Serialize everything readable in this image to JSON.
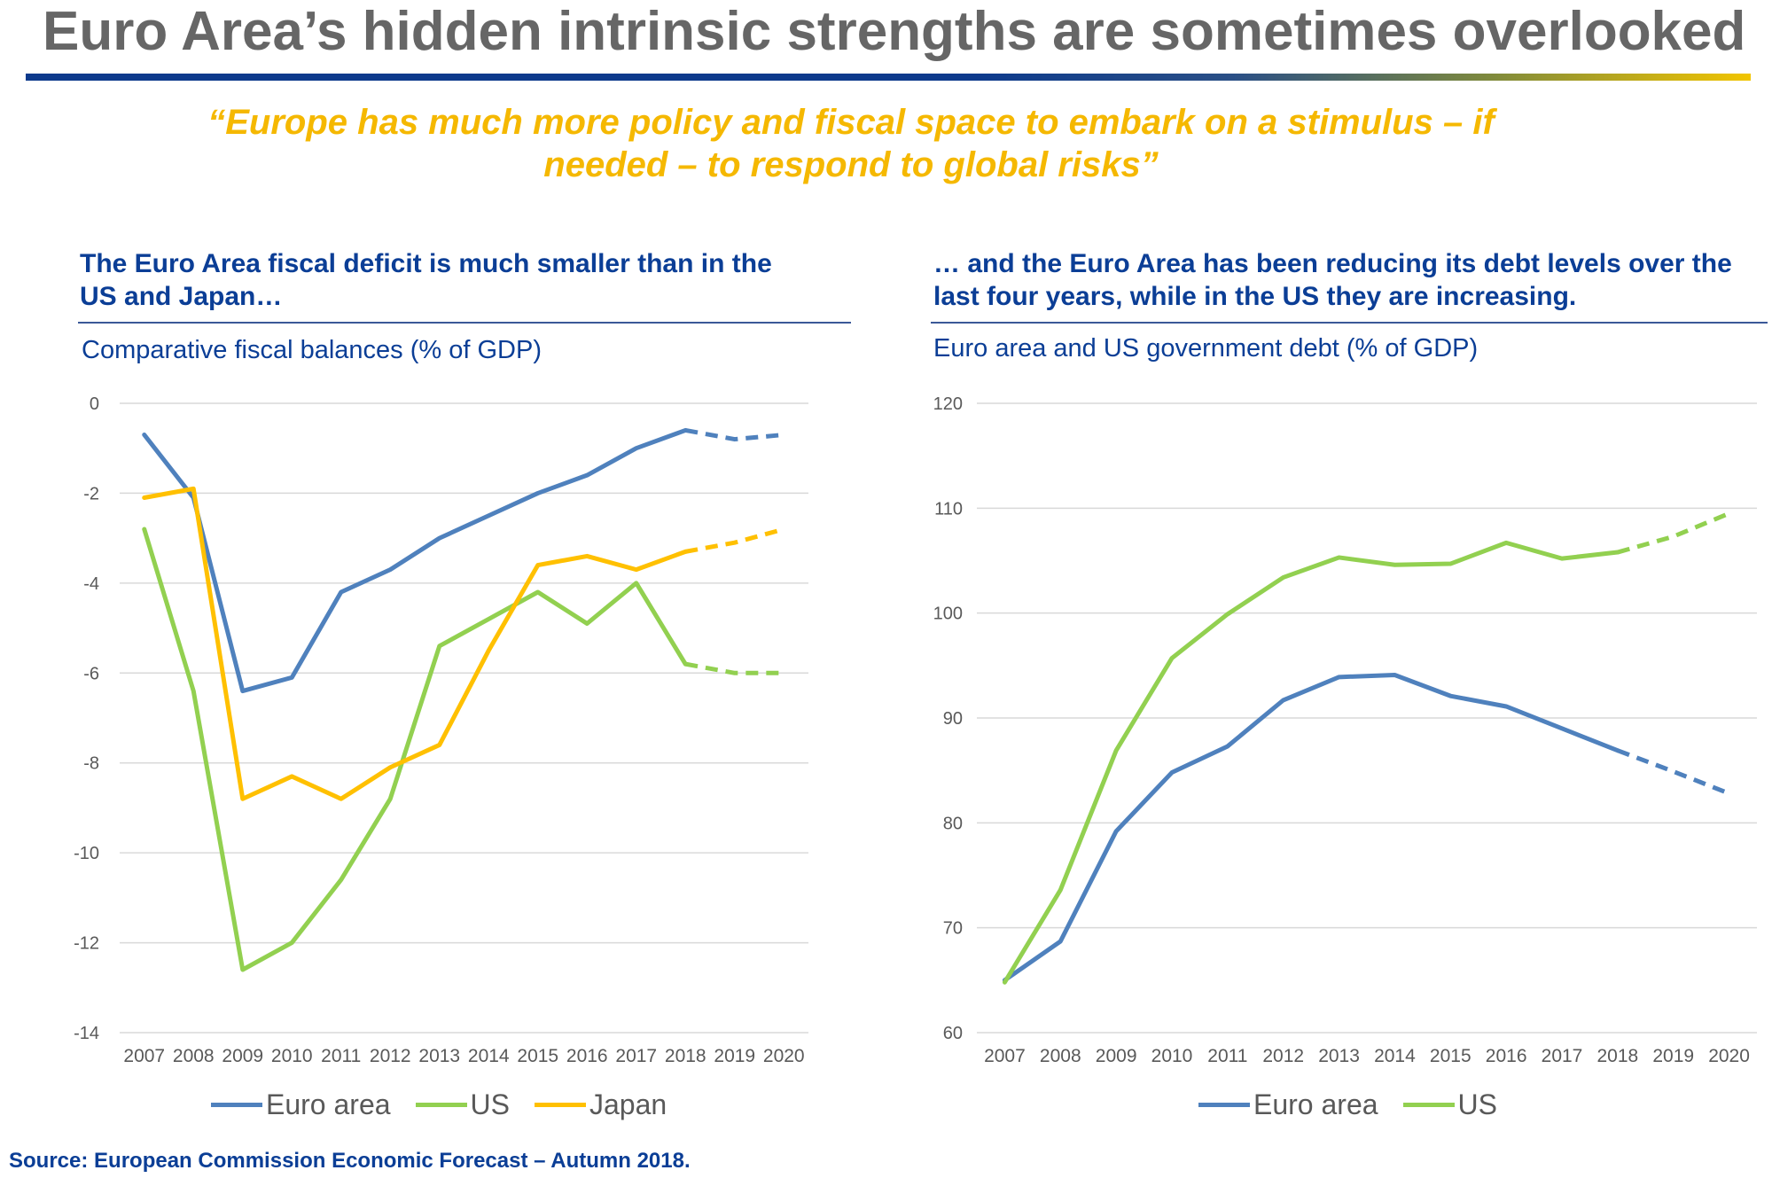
{
  "title": "Euro Area’s hidden intrinsic strengths are sometimes overlooked",
  "quote": "“Europe has much more policy and fiscal space to embark on a stimulus – if needed – to respond to global risks”",
  "left_panel": {
    "headline": "The Euro Area fiscal deficit is much smaller than in the US and Japan…",
    "subtitle": "Comparative fiscal balances (% of GDP)"
  },
  "right_panel": {
    "headline": "… and the Euro Area has been reducing its debt levels over the last four years, while in the US they are increasing.",
    "subtitle": "Euro area and US government debt (% of GDP)"
  },
  "source": "Source: European Commission Economic Forecast – Autumn 2018.",
  "colors": {
    "euro_area": "#4f81bd",
    "us": "#92d050",
    "japan": "#ffc000",
    "grid": "#d9d9d9",
    "axis_text": "#595959"
  },
  "chart_data": [
    {
      "type": "line",
      "title": "Comparative fiscal balances (% of GDP)",
      "categories": [
        "2007",
        "2008",
        "2009",
        "2010",
        "2011",
        "2012",
        "2013",
        "2014",
        "2015",
        "2016",
        "2017",
        "2018",
        "2019",
        "2020"
      ],
      "ylim": [
        -14,
        0
      ],
      "yticks": [
        0,
        -2,
        -4,
        -6,
        -8,
        -10,
        -12,
        -14
      ],
      "grid": true,
      "legend": "bottom",
      "forecast_from": "2018",
      "series": [
        {
          "name": "Euro area",
          "color": "#4f81bd",
          "values": [
            -0.7,
            -2.1,
            -6.4,
            -6.1,
            -4.2,
            -3.7,
            -3.0,
            -2.5,
            -2.0,
            -1.6,
            -1.0,
            -0.6,
            -0.8,
            -0.7
          ]
        },
        {
          "name": "US",
          "color": "#92d050",
          "values": [
            -2.8,
            -6.4,
            -12.6,
            -12.0,
            -10.6,
            -8.8,
            -5.4,
            -4.8,
            -4.2,
            -4.9,
            -4.0,
            -5.8,
            -6.0,
            -6.0
          ]
        },
        {
          "name": "Japan",
          "color": "#ffc000",
          "values": [
            -2.1,
            -1.9,
            -8.8,
            -8.3,
            -8.8,
            -8.1,
            -7.6,
            -5.5,
            -3.6,
            -3.4,
            -3.7,
            -3.3,
            -3.1,
            -2.8
          ]
        }
      ]
    },
    {
      "type": "line",
      "title": "Euro area and US government debt (% of GDP)",
      "categories": [
        "2007",
        "2008",
        "2009",
        "2010",
        "2011",
        "2012",
        "2013",
        "2014",
        "2015",
        "2016",
        "2017",
        "2018",
        "2019",
        "2020"
      ],
      "ylim": [
        60,
        120
      ],
      "yticks": [
        120,
        110,
        100,
        90,
        80,
        70,
        60
      ],
      "grid": true,
      "legend": "bottom",
      "forecast_from": "2018",
      "series": [
        {
          "name": "Euro area",
          "color": "#4f81bd",
          "values": [
            65.0,
            68.7,
            79.2,
            84.8,
            87.3,
            91.7,
            93.9,
            94.1,
            92.1,
            91.1,
            89.0,
            86.9,
            84.9,
            82.8
          ]
        },
        {
          "name": "US",
          "color": "#92d050",
          "values": [
            64.8,
            73.6,
            86.9,
            95.7,
            99.9,
            103.4,
            105.3,
            104.6,
            104.7,
            106.7,
            105.2,
            105.8,
            107.3,
            109.5
          ]
        }
      ]
    }
  ]
}
